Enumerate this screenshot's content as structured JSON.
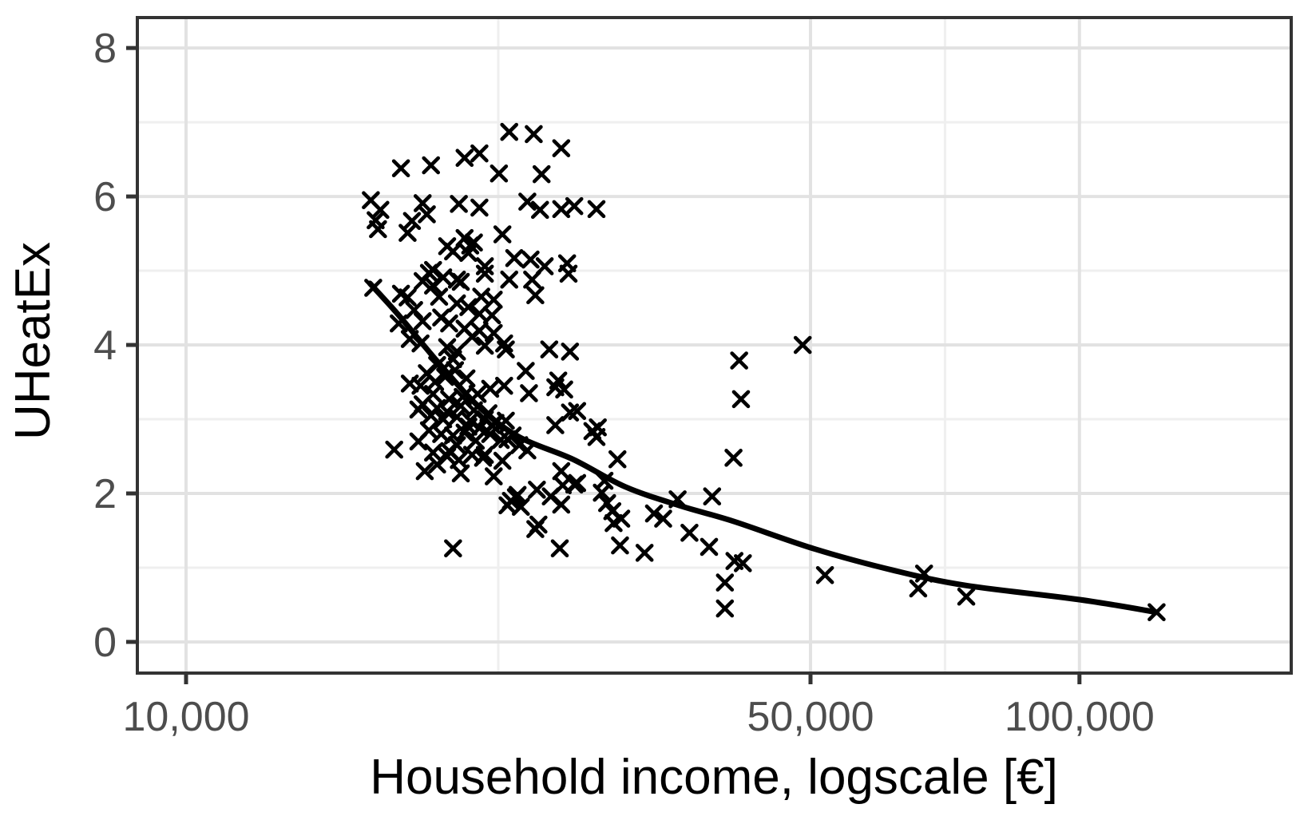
{
  "chart_data": {
    "type": "scatter",
    "title": "",
    "xlabel": "Household income, logscale [€]",
    "ylabel": "UHeatEx",
    "x_scale": "log10",
    "grid": true,
    "legend": "none",
    "marker": "x",
    "xlim": [
      8820,
      172600
    ],
    "ylim": [
      -0.42,
      8.41
    ],
    "x_ticks": [
      {
        "value": 10000,
        "label": "10,000"
      },
      {
        "value": 50000,
        "label": "50,000"
      },
      {
        "value": 100000,
        "label": "100,000"
      }
    ],
    "y_ticks": [
      {
        "value": 0,
        "label": "0"
      },
      {
        "value": 2,
        "label": "2"
      },
      {
        "value": 4,
        "label": "4"
      },
      {
        "value": 6,
        "label": "6"
      },
      {
        "value": 8,
        "label": "8"
      }
    ],
    "x_minor_gridlines": [
      22360,
      70711
    ],
    "y_minor_gridlines": [
      1,
      3,
      5,
      7
    ],
    "colors": {
      "background": "#ffffff",
      "panel_border": "#333333",
      "grid_major": "#e2e2e2",
      "grid_minor": "#efefef",
      "tick": "#333333",
      "tick_label": "#4d4d4d",
      "axis_title": "#000000",
      "points": "#000000",
      "trend": "#000000"
    },
    "points": [
      [
        23000,
        6.87
      ],
      [
        24500,
        6.84
      ],
      [
        26300,
        6.65
      ],
      [
        20500,
        6.52
      ],
      [
        21300,
        6.58
      ],
      [
        17400,
        6.38
      ],
      [
        18800,
        6.42
      ],
      [
        22400,
        6.31
      ],
      [
        25000,
        6.3
      ],
      [
        16100,
        5.95
      ],
      [
        16500,
        5.82
      ],
      [
        16300,
        5.68
      ],
      [
        16400,
        5.56
      ],
      [
        18400,
        5.91
      ],
      [
        18600,
        5.76
      ],
      [
        17900,
        5.67
      ],
      [
        17700,
        5.51
      ],
      [
        20200,
        5.9
      ],
      [
        21300,
        5.85
      ],
      [
        24100,
        5.93
      ],
      [
        24900,
        5.82
      ],
      [
        26300,
        5.83
      ],
      [
        27200,
        5.87
      ],
      [
        28800,
        5.83
      ],
      [
        22600,
        5.49
      ],
      [
        20500,
        5.44
      ],
      [
        20800,
        5.34
      ],
      [
        19900,
        5.26
      ],
      [
        20700,
        5.24
      ],
      [
        21000,
        5.38
      ],
      [
        19600,
        5.33
      ],
      [
        21600,
        5.06
      ],
      [
        23300,
        5.17
      ],
      [
        24300,
        5.15
      ],
      [
        25200,
        5.06
      ],
      [
        26700,
        5.1
      ],
      [
        18900,
        5.01
      ],
      [
        18700,
        4.97
      ],
      [
        18400,
        4.86
      ],
      [
        19400,
        4.91
      ],
      [
        20100,
        4.88
      ],
      [
        21600,
        4.96
      ],
      [
        16200,
        4.77
      ],
      [
        20300,
        4.85
      ],
      [
        23000,
        4.88
      ],
      [
        17400,
        4.69
      ],
      [
        17700,
        4.64
      ],
      [
        18900,
        4.8
      ],
      [
        19200,
        4.65
      ],
      [
        20100,
        4.56
      ],
      [
        21400,
        4.65
      ],
      [
        22100,
        4.61
      ],
      [
        24400,
        4.88
      ],
      [
        24600,
        4.67
      ],
      [
        26800,
        4.96
      ],
      [
        18000,
        4.47
      ],
      [
        20700,
        4.51
      ],
      [
        21300,
        4.42
      ],
      [
        22000,
        4.4
      ],
      [
        18400,
        4.32
      ],
      [
        17300,
        4.29
      ],
      [
        19300,
        4.37
      ],
      [
        19700,
        4.29
      ],
      [
        20500,
        4.22
      ],
      [
        21300,
        4.19
      ],
      [
        22100,
        4.16
      ],
      [
        17800,
        4.08
      ],
      [
        18300,
        4.02
      ],
      [
        19600,
        3.97
      ],
      [
        20100,
        3.91
      ],
      [
        20900,
        4.11
      ],
      [
        21600,
        3.99
      ],
      [
        22700,
        4.02
      ],
      [
        22800,
        3.94
      ],
      [
        25500,
        3.94
      ],
      [
        26900,
        3.91
      ],
      [
        49000,
        4.0
      ],
      [
        41600,
        3.79
      ],
      [
        19100,
        3.73
      ],
      [
        19900,
        3.81
      ],
      [
        17800,
        3.48
      ],
      [
        18300,
        3.45
      ],
      [
        18900,
        3.34
      ],
      [
        19700,
        3.27
      ],
      [
        20400,
        3.3
      ],
      [
        21200,
        3.34
      ],
      [
        21900,
        3.41
      ],
      [
        22700,
        3.45
      ],
      [
        24000,
        3.65
      ],
      [
        24200,
        3.35
      ],
      [
        25900,
        3.43
      ],
      [
        26500,
        3.4
      ],
      [
        26100,
        3.52
      ],
      [
        41800,
        3.27
      ],
      [
        18600,
        3.62
      ],
      [
        19500,
        3.57
      ],
      [
        20000,
        3.66
      ],
      [
        20600,
        3.55
      ],
      [
        19000,
        3.5
      ],
      [
        18200,
        3.13
      ],
      [
        18800,
        3.05
      ],
      [
        19400,
        3.0
      ],
      [
        20100,
        3.03
      ],
      [
        20800,
        2.98
      ],
      [
        21600,
        3.0
      ],
      [
        22200,
        2.95
      ],
      [
        22800,
        2.98
      ],
      [
        26900,
        3.09
      ],
      [
        27400,
        3.11
      ],
      [
        25900,
        2.92
      ],
      [
        28900,
        2.89
      ],
      [
        28500,
        2.84
      ],
      [
        18400,
        3.2
      ],
      [
        19100,
        3.15
      ],
      [
        19600,
        3.1
      ],
      [
        20300,
        3.18
      ],
      [
        21000,
        3.12
      ],
      [
        21800,
        3.08
      ],
      [
        17100,
        2.59
      ],
      [
        18200,
        2.7
      ],
      [
        19700,
        2.57
      ],
      [
        20100,
        2.65
      ],
      [
        21100,
        2.71
      ],
      [
        22900,
        2.73
      ],
      [
        28800,
        2.76
      ],
      [
        18700,
        2.85
      ],
      [
        19300,
        2.8
      ],
      [
        19900,
        2.78
      ],
      [
        20500,
        2.82
      ],
      [
        21900,
        2.8
      ],
      [
        22500,
        2.72
      ],
      [
        23200,
        2.78
      ],
      [
        20700,
        2.9
      ],
      [
        21300,
        2.88
      ],
      [
        22000,
        2.92
      ],
      [
        23600,
        2.65
      ],
      [
        24100,
        2.58
      ],
      [
        18500,
        2.3
      ],
      [
        19100,
        2.39
      ],
      [
        20300,
        2.27
      ],
      [
        22100,
        2.23
      ],
      [
        26300,
        2.3
      ],
      [
        26400,
        2.11
      ],
      [
        27200,
        2.12
      ],
      [
        29400,
        2.17
      ],
      [
        30400,
        2.46
      ],
      [
        41000,
        2.48
      ],
      [
        21600,
        2.52
      ],
      [
        22600,
        2.44
      ],
      [
        18900,
        2.55
      ],
      [
        19600,
        2.5
      ],
      [
        20200,
        2.45
      ],
      [
        20900,
        2.52
      ],
      [
        21500,
        2.48
      ],
      [
        23100,
        1.9
      ],
      [
        22900,
        1.84
      ],
      [
        27400,
        2.14
      ],
      [
        25600,
        1.96
      ],
      [
        23500,
        1.98
      ],
      [
        23400,
        1.95
      ],
      [
        23700,
        1.82
      ],
      [
        29200,
        2.01
      ],
      [
        35500,
        1.92
      ],
      [
        38800,
        1.96
      ],
      [
        24700,
        2.05
      ],
      [
        29600,
        1.87
      ],
      [
        26300,
        1.85
      ],
      [
        24600,
        1.52
      ],
      [
        26200,
        1.26
      ],
      [
        30000,
        1.76
      ],
      [
        30700,
        1.66
      ],
      [
        30600,
        1.3
      ],
      [
        32600,
        1.2
      ],
      [
        33400,
        1.73
      ],
      [
        34200,
        1.66
      ],
      [
        36600,
        1.47
      ],
      [
        38500,
        1.28
      ],
      [
        19900,
        1.26
      ],
      [
        24800,
        1.58
      ],
      [
        30100,
        1.6
      ],
      [
        41100,
        1.09
      ],
      [
        42000,
        1.06
      ],
      [
        40100,
        0.8
      ],
      [
        40100,
        0.45
      ],
      [
        51900,
        0.9
      ],
      [
        67000,
        0.92
      ],
      [
        66000,
        0.72
      ],
      [
        74700,
        0.61
      ],
      [
        122000,
        0.4
      ]
    ],
    "trend_line": [
      [
        16060,
        4.83
      ],
      [
        17300,
        4.4
      ],
      [
        19200,
        3.75
      ],
      [
        21300,
        3.16
      ],
      [
        23600,
        2.76
      ],
      [
        27100,
        2.46
      ],
      [
        31000,
        2.09
      ],
      [
        35600,
        1.84
      ],
      [
        41100,
        1.62
      ],
      [
        50600,
        1.25
      ],
      [
        62100,
        0.96
      ],
      [
        74700,
        0.76
      ],
      [
        100000,
        0.57
      ],
      [
        122000,
        0.4
      ]
    ]
  }
}
